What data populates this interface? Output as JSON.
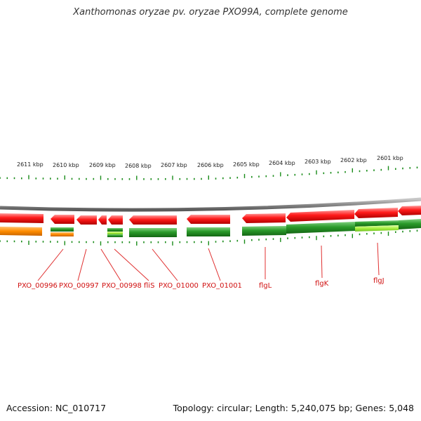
{
  "title": "Xanthomonas oryzae pv. oryzae PXO99A, complete genome",
  "footer": {
    "accession": "Accession: NC_010717",
    "summary": "Topology: circular; Length: 5,240,075 bp; Genes: 5,048"
  },
  "colors": {
    "forward_gene": "#ee1111",
    "reverse_gene": "#228b22",
    "reverse_gene_light": "#9aeb3a",
    "other_feature": "#ff8c00",
    "ruler": "#1a8c1a",
    "backbone": "#888888",
    "label": "#d01010"
  },
  "ruler_labels": [
    "2611 kbp",
    "2610 kbp",
    "2609 kbp",
    "2608 kbp",
    "2607 kbp",
    "2606 kbp",
    "2605 kbp",
    "2604 kbp",
    "2603 kbp",
    "2602 kbp",
    "2601 kbp"
  ],
  "gene_labels": [
    "PXO_00996",
    "PXO_00997",
    "PXO_00998",
    "fliS",
    "PXO_01000",
    "PXO_01001",
    "flgL",
    "flgK",
    "flgJ"
  ]
}
